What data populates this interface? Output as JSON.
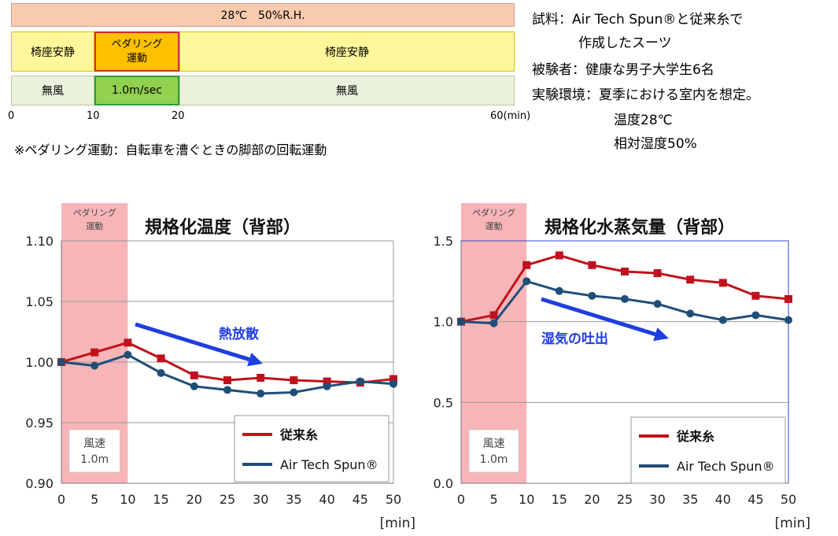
{
  "protocol": {
    "condition": "28℃　50%R.H.",
    "activity": [
      "椅座安静",
      "ペダリング\n運動",
      "椅座安静"
    ],
    "wind": [
      "無風",
      "1.0m/sec",
      "無風"
    ],
    "ticks": [
      "0",
      "10",
      "20",
      "60(min)"
    ],
    "note": "※ペダリング運動：自転車を漕ぐときの脚部の回転運動"
  },
  "info": {
    "sample_label": "試料：",
    "sample_value": "Air Tech Spun®と従来糸で",
    "sample_value2": "作成したスーツ",
    "subject": "被験者：健康な男子大学生6名",
    "env": "実験環境：夏季における室内を想定。",
    "temp": "温度28℃",
    "humidity": "相対湿度50%"
  },
  "colors": {
    "conventional": "#c0121d",
    "airtech": "#1f4e79",
    "arrow": "#1f3ee0",
    "pedal_band": "#f7b5b8"
  },
  "chart_data": [
    {
      "type": "line",
      "title": "規格化温度（背部）",
      "pedal_label": "ペダリング\n運動",
      "wind_label": "風速\n1.0m",
      "annotation": "熱放散",
      "x": [
        0,
        5,
        10,
        15,
        20,
        25,
        30,
        35,
        40,
        45,
        50
      ],
      "xlabel": "[min]",
      "ylim": [
        0.9,
        1.1
      ],
      "yticks": [
        "0.90",
        "0.95",
        "1.00",
        "1.05",
        "1.10"
      ],
      "series": [
        {
          "name": "従来糸",
          "values": [
            1.0,
            1.008,
            1.016,
            1.003,
            0.989,
            0.985,
            0.987,
            0.985,
            0.984,
            0.983,
            0.986
          ]
        },
        {
          "name": "Air Tech Spun®",
          "values": [
            1.0,
            0.997,
            1.006,
            0.991,
            0.98,
            0.977,
            0.974,
            0.975,
            0.98,
            0.984,
            0.982
          ]
        }
      ]
    },
    {
      "type": "line",
      "title": "規格化水蒸気量（背部）",
      "pedal_label": "ペダリング\n運動",
      "wind_label": "風速\n1.0m",
      "annotation": "湿気の吐出",
      "x": [
        0,
        5,
        10,
        15,
        20,
        25,
        30,
        35,
        40,
        45,
        50
      ],
      "xlabel": "[min]",
      "ylim": [
        0.0,
        1.5
      ],
      "yticks": [
        "0.0",
        "0.5",
        "1.0",
        "1.5"
      ],
      "series": [
        {
          "name": "従来糸",
          "values": [
            1.0,
            1.04,
            1.35,
            1.41,
            1.35,
            1.31,
            1.3,
            1.26,
            1.24,
            1.16,
            1.14
          ]
        },
        {
          "name": "Air Tech Spun®",
          "values": [
            1.0,
            0.99,
            1.25,
            1.19,
            1.16,
            1.14,
            1.11,
            1.05,
            1.01,
            1.04,
            1.01
          ]
        }
      ]
    }
  ]
}
